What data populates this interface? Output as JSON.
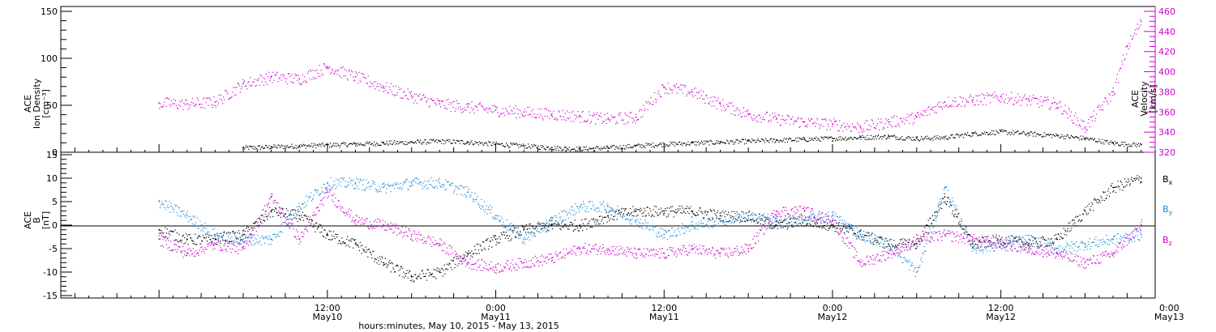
{
  "chart_data": [
    {
      "type": "scatter",
      "panel": "top",
      "ylabel_lines": [
        "ACE",
        "Ion Density",
        "[cm⁻³]"
      ],
      "ylabel_right_lines": [
        "ACE",
        "Velocity",
        "[km/s]"
      ],
      "ylim": [
        0,
        150
      ],
      "yticks": [
        0,
        50,
        100,
        150
      ],
      "ylim_right": [
        320,
        460
      ],
      "yticks_right": [
        320,
        340,
        360,
        380,
        400,
        420,
        440,
        460
      ],
      "series": [
        {
          "axis": "left",
          "color": "#000000",
          "x": [
            6,
            8,
            10,
            12,
            14,
            16,
            18,
            20,
            22,
            24,
            26,
            28,
            30,
            32,
            34,
            36,
            38,
            40,
            42,
            44,
            46,
            48,
            50,
            52,
            54,
            56,
            58,
            60,
            62,
            64,
            66,
            68,
            70
          ],
          "values": [
            5,
            6,
            7,
            8,
            9,
            10,
            11,
            12,
            11,
            9,
            7,
            5,
            4,
            5,
            7,
            9,
            10,
            11,
            12,
            13,
            14,
            15,
            16,
            17,
            15,
            16,
            20,
            22,
            20,
            18,
            15,
            10,
            8
          ]
        },
        {
          "axis": "right",
          "color": "#cc00cc",
          "x": [
            0,
            2,
            4,
            6,
            8,
            10,
            12,
            14,
            16,
            18,
            20,
            22,
            24,
            26,
            28,
            30,
            32,
            34,
            36,
            38,
            40,
            42,
            44,
            46,
            48,
            50,
            52,
            54,
            56,
            58,
            60,
            62,
            64,
            66,
            68,
            69,
            70
          ],
          "values": [
            369,
            368,
            370,
            388,
            395,
            393,
            405,
            395,
            385,
            376,
            368,
            365,
            362,
            360,
            358,
            356,
            353,
            355,
            385,
            380,
            368,
            358,
            353,
            350,
            348,
            345,
            350,
            355,
            370,
            372,
            375,
            372,
            368,
            345,
            380,
            425,
            450
          ]
        }
      ]
    },
    {
      "type": "scatter",
      "panel": "bottom",
      "ylabel_lines": [
        "ACE",
        "B",
        "[nT]"
      ],
      "ylim": [
        -15,
        15
      ],
      "yticks": [
        -15,
        -10,
        -5,
        0,
        5,
        10,
        15
      ],
      "xlabel": "hours:minutes, May 10, 2015 - May 13, 2015",
      "xlim": [
        -7,
        71
      ],
      "xticks": [
        {
          "x": 12,
          "time": "12:00",
          "day": "May10"
        },
        {
          "x": 24,
          "time": "0:00",
          "day": "May11"
        },
        {
          "x": 36,
          "time": "12:00",
          "day": "May11"
        },
        {
          "x": 48,
          "time": "0:00",
          "day": "May12"
        },
        {
          "x": 60,
          "time": "12:00",
          "day": "May12"
        },
        {
          "x": 72,
          "time": "0:00",
          "day": "May13"
        }
      ],
      "series": [
        {
          "name": "B",
          "subscript": "x",
          "color": "#000000",
          "x": [
            0,
            2,
            4,
            6,
            8,
            10,
            12,
            14,
            16,
            18,
            20,
            22,
            24,
            26,
            28,
            30,
            32,
            34,
            36,
            38,
            40,
            42,
            44,
            46,
            48,
            50,
            52,
            54,
            56,
            58,
            60,
            62,
            64,
            66,
            68,
            70
          ],
          "values": [
            -1,
            -3,
            -3,
            -2,
            3,
            2,
            -2,
            -4,
            -8,
            -11,
            -10,
            -6,
            -3,
            -1,
            0,
            0,
            2,
            3,
            3,
            3,
            2,
            2,
            0,
            1,
            0,
            -2,
            -4,
            -4,
            6,
            -4,
            -3,
            -4,
            -3,
            3,
            8,
            10
          ]
        },
        {
          "name": "B",
          "subscript": "y",
          "color": "#1a8ad8",
          "x": [
            0,
            2,
            4,
            6,
            8,
            10,
            12,
            14,
            16,
            18,
            20,
            22,
            24,
            26,
            28,
            30,
            32,
            34,
            36,
            38,
            40,
            42,
            44,
            46,
            48,
            50,
            52,
            54,
            56,
            58,
            60,
            62,
            64,
            66,
            68,
            70
          ],
          "values": [
            5,
            2,
            -2,
            -3,
            -3,
            4,
            9,
            9,
            8,
            9,
            9,
            7,
            2,
            -3,
            1,
            4,
            4,
            1,
            -2,
            0,
            1,
            2,
            1,
            1,
            2,
            -2,
            -4,
            -10,
            8,
            -5,
            -4,
            -3,
            -5,
            -4,
            -3,
            -2
          ]
        },
        {
          "name": "B",
          "subscript": "z",
          "color": "#cc00cc",
          "x": [
            0,
            2,
            4,
            6,
            8,
            10,
            12,
            14,
            16,
            18,
            20,
            22,
            24,
            26,
            28,
            30,
            32,
            34,
            36,
            38,
            40,
            42,
            44,
            46,
            48,
            50,
            52,
            54,
            56,
            58,
            60,
            62,
            64,
            66,
            68,
            70
          ],
          "values": [
            -3,
            -6,
            -4,
            -5,
            6,
            -3,
            7,
            1,
            0,
            -2,
            -4,
            -8,
            -9,
            -8,
            -7,
            -5,
            -5,
            -6,
            -6,
            -5,
            -6,
            -5,
            3,
            3,
            1,
            -8,
            -6,
            -3,
            -2,
            -3,
            -4,
            -5,
            -6,
            -8,
            -6,
            0
          ]
        }
      ]
    }
  ]
}
